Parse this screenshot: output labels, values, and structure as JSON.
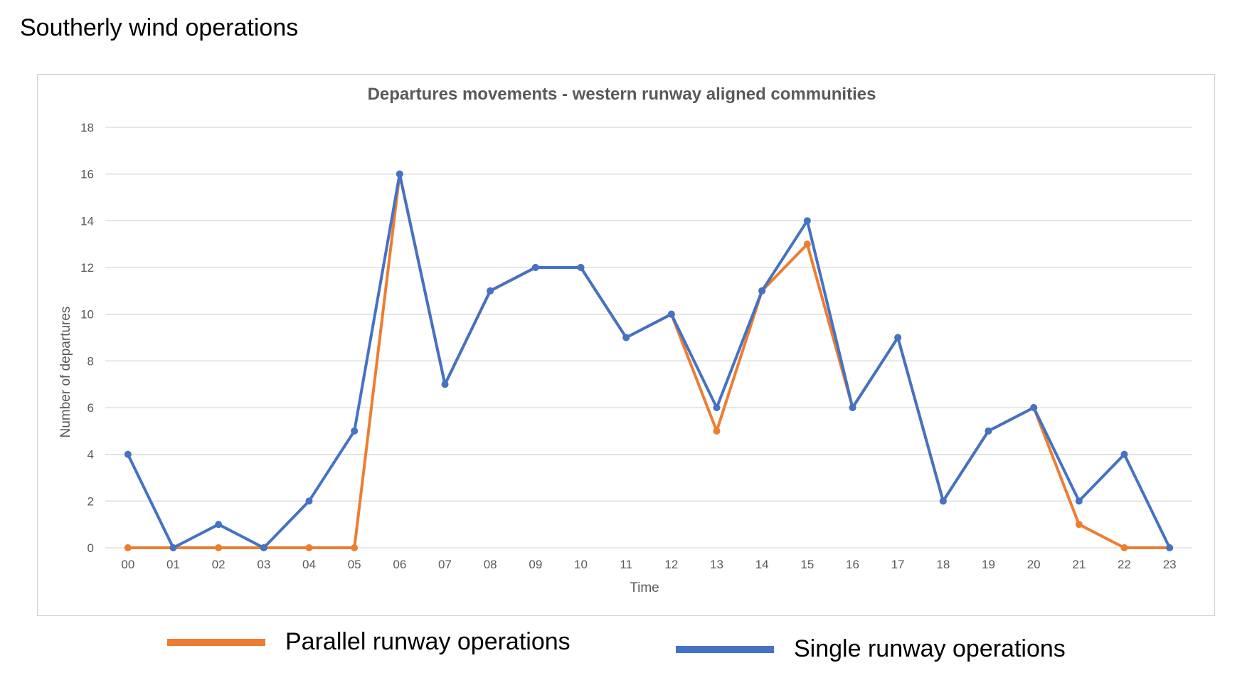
{
  "page_heading": "Southerly wind operations",
  "colors": {
    "parallel": "#ED7D31",
    "single": "#4472C4",
    "grid": "#d9d9d9",
    "axis_text": "#595959"
  },
  "chart_data": {
    "type": "line",
    "title": "Departures movements - western runway aligned communities",
    "xlabel": "Time",
    "ylabel": "Number of departures",
    "ylim": [
      0,
      18
    ],
    "yticks": [
      "0",
      "2",
      "4",
      "6",
      "8",
      "10",
      "12",
      "14",
      "16",
      "18"
    ],
    "grid": true,
    "legend_position": "bottom",
    "categories": [
      "00",
      "01",
      "02",
      "03",
      "04",
      "05",
      "06",
      "07",
      "08",
      "09",
      "10",
      "11",
      "12",
      "13",
      "14",
      "15",
      "16",
      "17",
      "18",
      "19",
      "20",
      "21",
      "22",
      "23"
    ],
    "series": [
      {
        "name": "Parallel runway operations",
        "color": "#ED7D31",
        "values": [
          0,
          0,
          0,
          0,
          0,
          0,
          16,
          7,
          11,
          12,
          12,
          9,
          10,
          5,
          11,
          13,
          6,
          9,
          2,
          5,
          6,
          1,
          0,
          0
        ]
      },
      {
        "name": "Single runway operations",
        "color": "#4472C4",
        "values": [
          4,
          0,
          1,
          0,
          2,
          5,
          16,
          7,
          11,
          12,
          12,
          9,
          10,
          6,
          11,
          14,
          6,
          9,
          2,
          5,
          6,
          2,
          4,
          0
        ]
      }
    ]
  }
}
